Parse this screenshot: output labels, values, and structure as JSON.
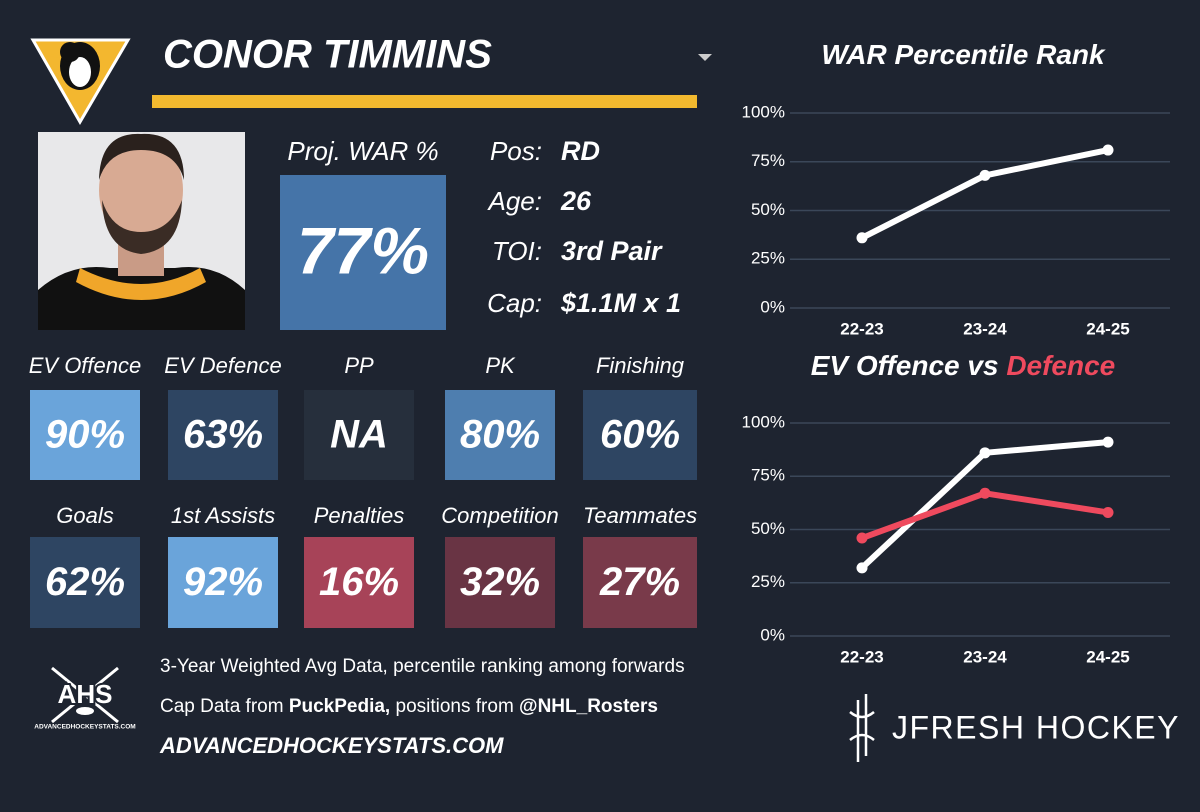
{
  "header": {
    "player_name": "CONOR TIMMINS"
  },
  "card": {
    "proj_label": "Proj. WAR %",
    "proj_value": "77%",
    "proj_color": "#4574a8",
    "info": [
      {
        "label": "Pos:",
        "value": "RD"
      },
      {
        "label": "Age:",
        "value": "26"
      },
      {
        "label": "TOI:",
        "value": "3rd Pair"
      },
      {
        "label": "Cap:",
        "value": "$1.1M x 1"
      }
    ],
    "tiles": [
      [
        {
          "label": "EV Offence",
          "value": "90%",
          "color": "#6aa4da"
        },
        {
          "label": "EV Defence",
          "value": "63%",
          "color": "#2e4562"
        },
        {
          "label": "PP",
          "value": "NA",
          "color": "#262f3c"
        },
        {
          "label": "PK",
          "value": "80%",
          "color": "#4e7eaf"
        },
        {
          "label": "Finishing",
          "value": "60%",
          "color": "#2e4562"
        }
      ],
      [
        {
          "label": "Goals",
          "value": "62%",
          "color": "#2e4562"
        },
        {
          "label": "1st Assists",
          "value": "92%",
          "color": "#6aa4da"
        },
        {
          "label": "Penalties",
          "value": "16%",
          "color": "#a74358"
        },
        {
          "label": "Competition",
          "value": "32%",
          "color": "#693444"
        },
        {
          "label": "Teammates",
          "value": "27%",
          "color": "#793a4a"
        }
      ]
    ]
  },
  "chart_data": [
    {
      "type": "line",
      "title": "WAR Percentile Rank",
      "categories": [
        "22-23",
        "23-24",
        "24-25"
      ],
      "series": [
        {
          "color": "#ffffff",
          "values": [
            36,
            68,
            81
          ]
        }
      ],
      "ylim": [
        0,
        100
      ],
      "yticks": [
        {
          "value": 0,
          "label": "0%"
        },
        {
          "value": 25,
          "label": "25%"
        },
        {
          "value": 50,
          "label": "50%"
        },
        {
          "value": 75,
          "label": "75%"
        },
        {
          "value": 100,
          "label": "100%"
        }
      ],
      "grid": true
    },
    {
      "type": "line",
      "title": "EV Offence vs",
      "title_highlight": "Defence",
      "title_highlight_color": "#ef4a5e",
      "categories": [
        "22-23",
        "23-24",
        "24-25"
      ],
      "series": [
        {
          "color": "#ffffff",
          "values": [
            32,
            86,
            91
          ]
        },
        {
          "color": "#ef4a5e",
          "values": [
            46,
            67,
            58
          ]
        }
      ],
      "ylim": [
        0,
        100
      ],
      "yticks": [
        {
          "value": 0,
          "label": "0%"
        },
        {
          "value": 25,
          "label": "25%"
        },
        {
          "value": 50,
          "label": "50%"
        },
        {
          "value": 75,
          "label": "75%"
        },
        {
          "value": 100,
          "label": "100%"
        }
      ],
      "grid": true
    }
  ],
  "footer": {
    "logo_text": "AHS",
    "logo_subtext": "ADVANCEDHOCKEYSTATS.COM",
    "line1": "3-Year Weighted Avg Data, percentile ranking among forwards",
    "line2_a": "Cap Data from ",
    "line2_b": "PuckPedia,",
    "line2_c": " positions from ",
    "line2_d": "@NHL_Rosters",
    "site": "ADVANCEDHOCKEYSTATS.COM",
    "brand": "JFRESH HOCKEY"
  }
}
